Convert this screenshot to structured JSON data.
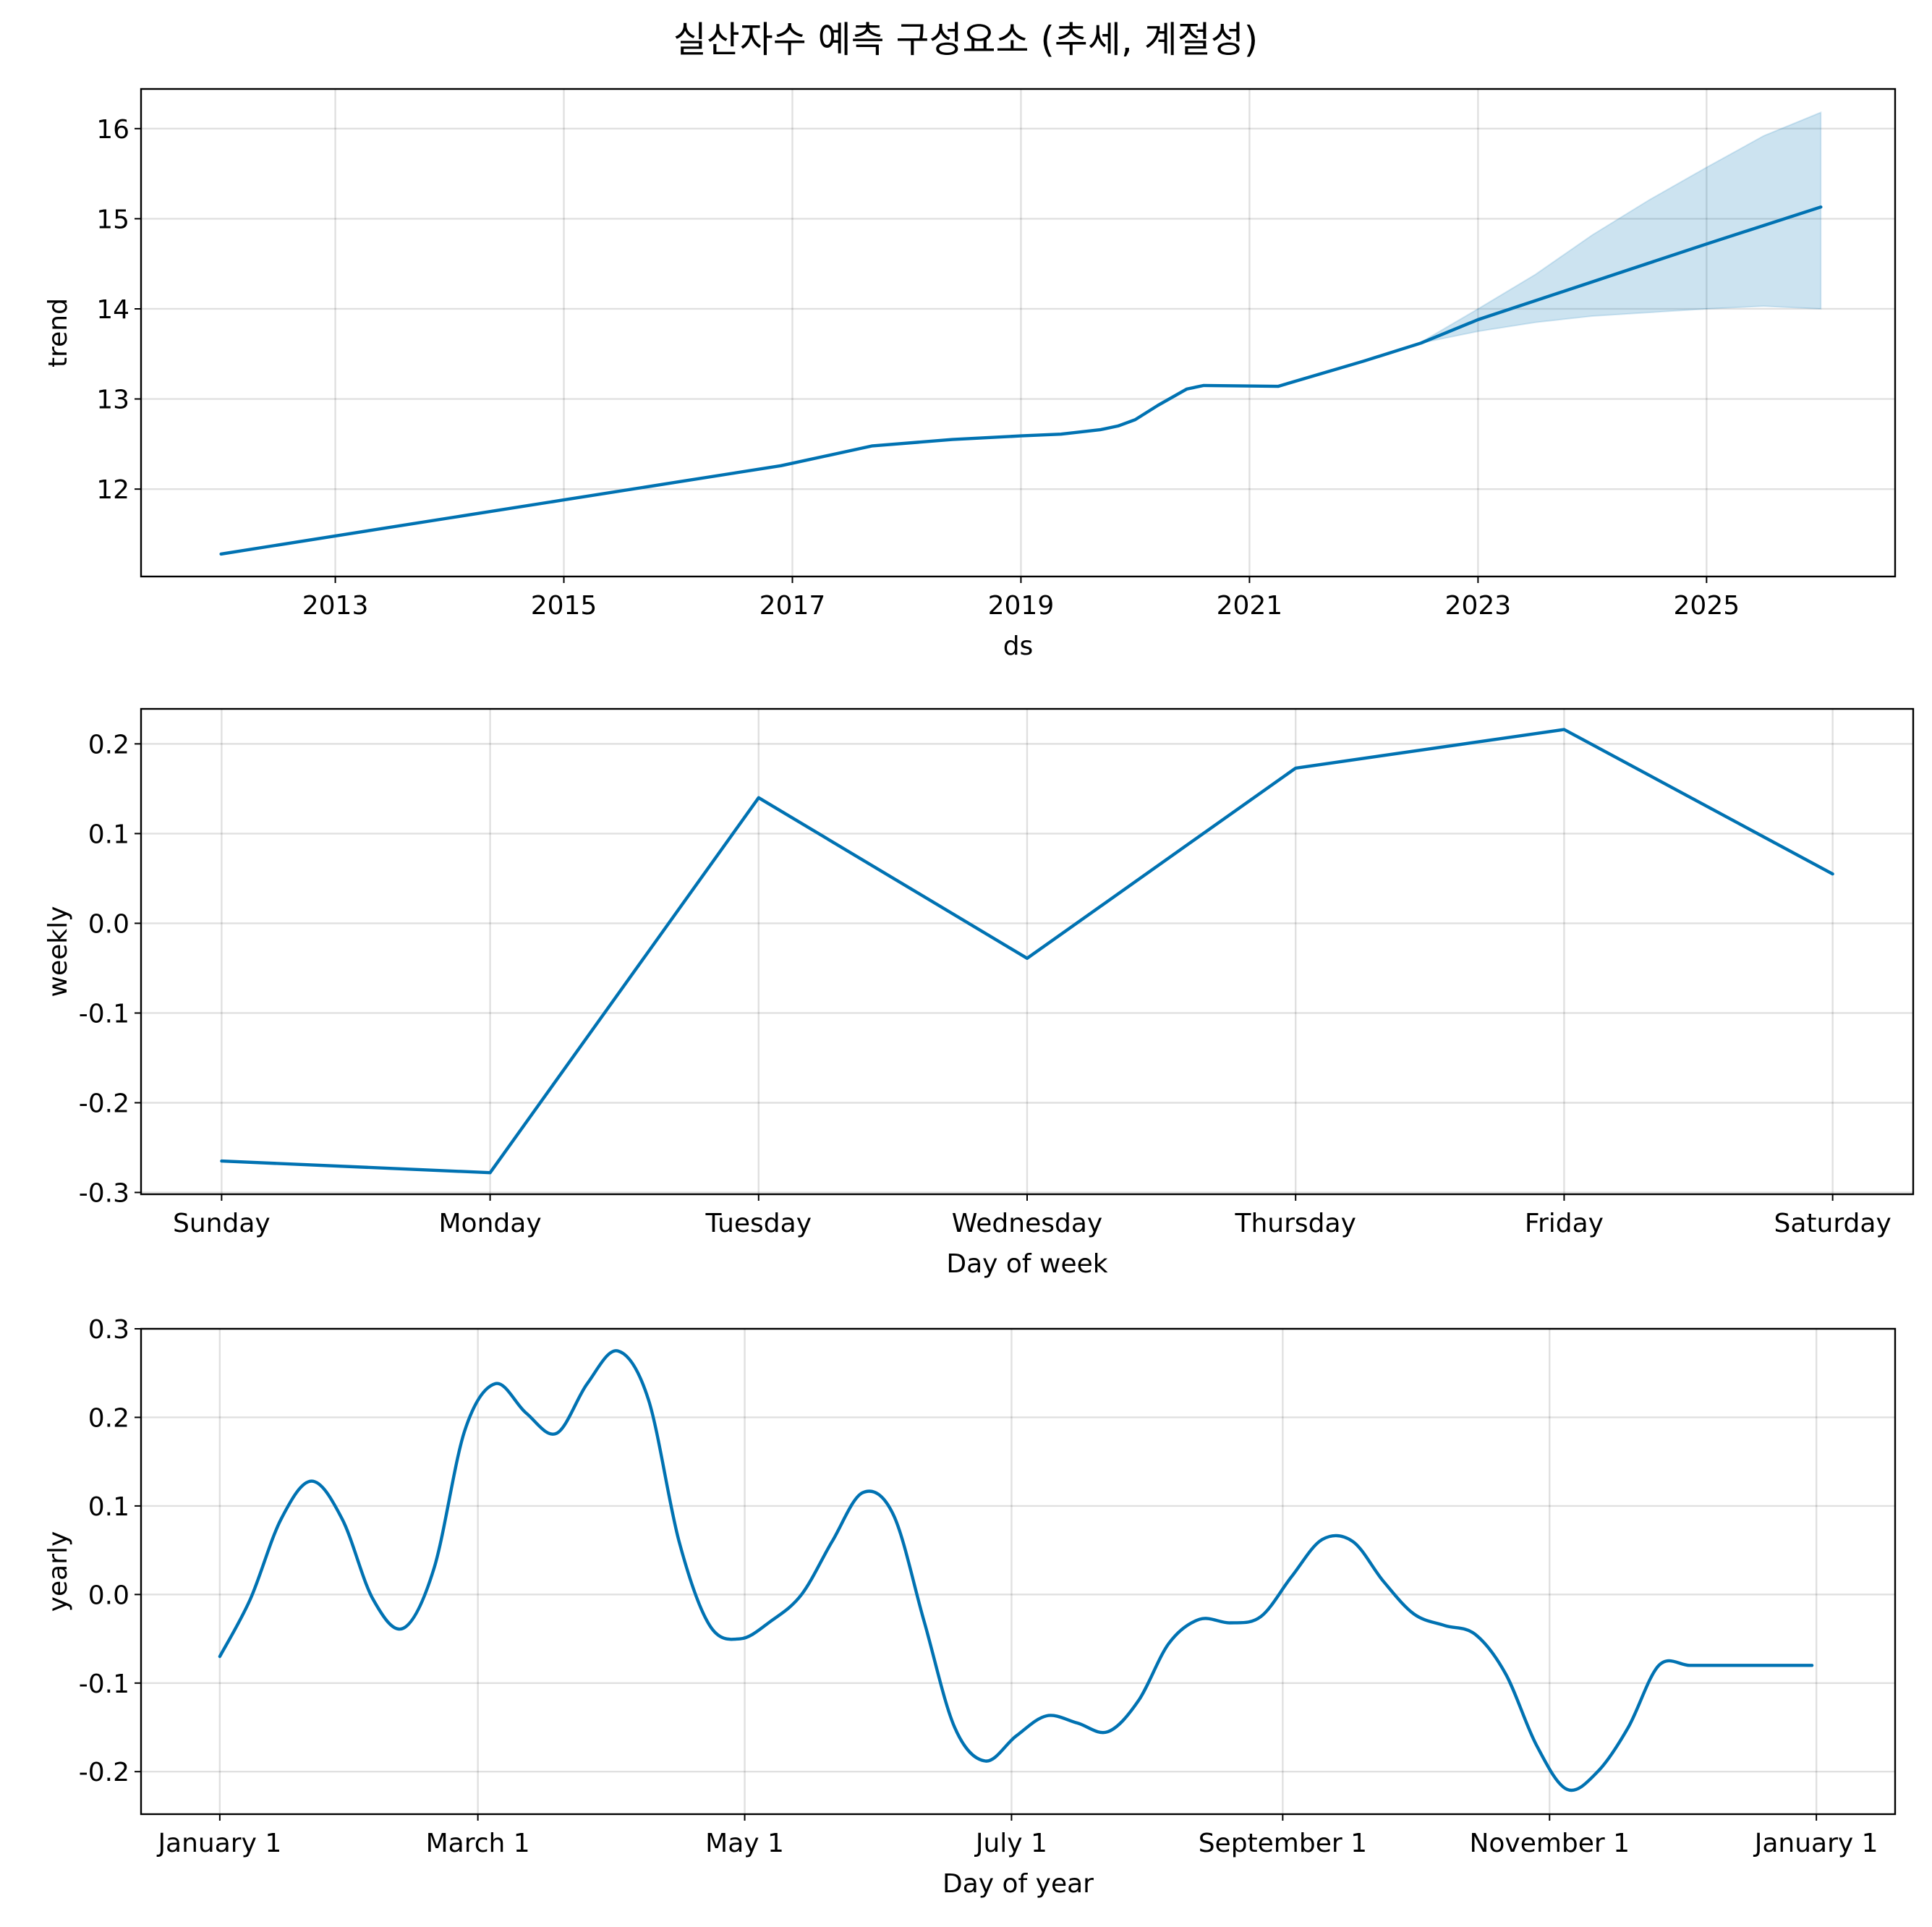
{
  "figure": {
    "title": "실산자수 예측 구성요소 (추세, 계절성)"
  },
  "colors": {
    "line": "#0072B2",
    "band": "#0072B2"
  },
  "chart_data": [
    {
      "type": "line",
      "name": "trend",
      "xlabel": "ds",
      "ylabel": "trend",
      "x_kind": "year",
      "xlim": [
        2011.3,
        2026.65
      ],
      "ylim": [
        11.03,
        16.44
      ],
      "xticks": [
        2013,
        2015,
        2017,
        2019,
        2021,
        2023,
        2025
      ],
      "xtick_labels": [
        "2013",
        "2015",
        "2017",
        "2019",
        "2021",
        "2023",
        "2025"
      ],
      "yticks": [
        12,
        13,
        14,
        15,
        16
      ],
      "ytick_labels": [
        "12",
        "13",
        "14",
        "15",
        "16"
      ],
      "grid": true,
      "x": [
        2012.0,
        2013.0,
        2014.0,
        2015.0,
        2016.0,
        2016.9,
        2017.7,
        2018.4,
        2019.0,
        2019.35,
        2019.7,
        2019.85,
        2020.0,
        2020.2,
        2020.45,
        2020.6,
        2021.25,
        2022.0,
        2022.5,
        2023.0,
        2024.0,
        2025.0,
        2026.0
      ],
      "y": [
        11.28,
        11.48,
        11.68,
        11.88,
        12.08,
        12.26,
        12.48,
        12.55,
        12.59,
        12.61,
        12.66,
        12.7,
        12.77,
        12.93,
        13.11,
        13.15,
        13.14,
        13.42,
        13.62,
        13.88,
        14.3,
        14.72,
        15.13
      ],
      "uncertainty_band": {
        "x": [
          2022.5,
          2023.0,
          2023.5,
          2024.0,
          2024.5,
          2025.0,
          2025.5,
          2026.0
        ],
        "lower": [
          13.62,
          13.75,
          13.85,
          13.92,
          13.96,
          14.0,
          14.03,
          14.0
        ],
        "upper": [
          13.63,
          14.0,
          14.38,
          14.82,
          15.21,
          15.57,
          15.92,
          16.18
        ]
      }
    },
    {
      "type": "line",
      "name": "weekly",
      "xlabel": "Day of week",
      "ylabel": "weekly",
      "x_kind": "category",
      "xlim": [
        -0.3,
        6.3
      ],
      "ylim": [
        -0.302,
        0.239
      ],
      "categories": [
        "Sunday",
        "Monday",
        "Tuesday",
        "Wednesday",
        "Thursday",
        "Friday",
        "Saturday"
      ],
      "yticks": [
        -0.3,
        -0.2,
        -0.1,
        0.0,
        0.1,
        0.2
      ],
      "ytick_labels": [
        "-0.3",
        "-0.2",
        "-0.1",
        "0.0",
        "0.1",
        "0.2"
      ],
      "grid": true,
      "values": [
        -0.265,
        -0.278,
        0.14,
        -0.039,
        0.173,
        0.216,
        0.055
      ]
    },
    {
      "type": "line",
      "name": "yearly",
      "xlabel": "Day of year",
      "ylabel": "yearly",
      "x_kind": "day_of_year",
      "xlim": [
        -18,
        383
      ],
      "ylim": [
        -0.248,
        0.3
      ],
      "xticks": [
        0,
        59,
        120,
        181,
        243,
        304,
        365
      ],
      "xtick_labels": [
        "January 1",
        "March 1",
        "May 1",
        "July 1",
        "September 1",
        "November 1",
        "January 1"
      ],
      "yticks": [
        -0.2,
        -0.1,
        0.0,
        0.1,
        0.2,
        0.3
      ],
      "ytick_labels": [
        "-0.2",
        "-0.1",
        "0.0",
        "0.1",
        "0.2",
        "0.3"
      ],
      "grid": true,
      "x": [
        0,
        7,
        14,
        21,
        28,
        35,
        42,
        49,
        56,
        63,
        70,
        77,
        84,
        91,
        98,
        105,
        112,
        119,
        126,
        133,
        140,
        147,
        154,
        161,
        168,
        175,
        182,
        189,
        196,
        203,
        210,
        217,
        224,
        231,
        238,
        245,
        252,
        259,
        266,
        273,
        280,
        287,
        294,
        301,
        308,
        315,
        322,
        329,
        336,
        343,
        350,
        357,
        364
      ],
      "y": [
        -0.07,
        -0.005,
        0.085,
        0.128,
        0.085,
        -0.005,
        -0.038,
        0.03,
        0.185,
        0.238,
        0.205,
        0.182,
        0.238,
        0.275,
        0.22,
        0.06,
        -0.035,
        -0.05,
        -0.03,
        0.0,
        0.06,
        0.115,
        0.09,
        -0.03,
        -0.15,
        -0.188,
        -0.16,
        -0.137,
        -0.145,
        -0.155,
        -0.12,
        -0.055,
        -0.028,
        -0.032,
        -0.025,
        0.02,
        0.062,
        0.06,
        0.015,
        -0.022,
        -0.035,
        -0.045,
        -0.09,
        -0.17,
        -0.22,
        -0.2,
        -0.15,
        -0.08,
        -0.08,
        -0.08,
        -0.08,
        -0.08,
        -0.08
      ]
    }
  ]
}
